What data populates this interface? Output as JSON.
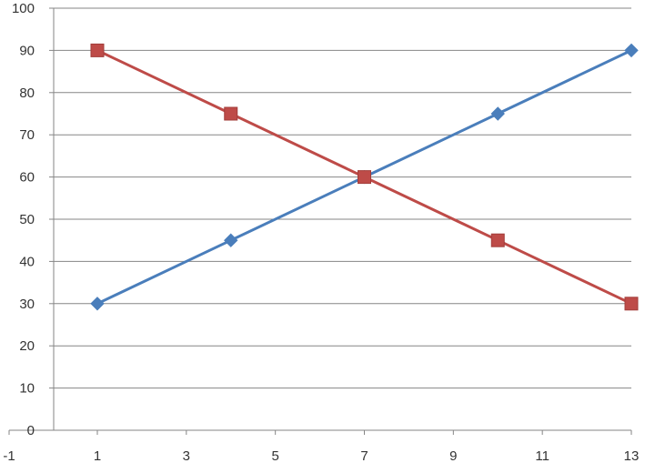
{
  "chart_data": {
    "type": "scatter",
    "title": "",
    "xlabel": "",
    "ylabel": "",
    "xlim": [
      -1,
      13
    ],
    "ylim": [
      0,
      100
    ],
    "x_ticks": [
      -1,
      1,
      3,
      5,
      7,
      9,
      11,
      13
    ],
    "y_ticks": [
      0,
      10,
      20,
      30,
      40,
      50,
      60,
      70,
      80,
      90,
      100
    ],
    "grid": "horizontal",
    "legend": "none",
    "series": [
      {
        "marker": "diamond",
        "color": "#4a7ebb",
        "points": [
          {
            "x": 1,
            "y": 30
          },
          {
            "x": 4,
            "y": 45
          },
          {
            "x": 7,
            "y": 60
          },
          {
            "x": 10,
            "y": 75
          },
          {
            "x": 13,
            "y": 90
          }
        ]
      },
      {
        "marker": "square",
        "color": "#be4b48",
        "points": [
          {
            "x": 1,
            "y": 90
          },
          {
            "x": 4,
            "y": 75
          },
          {
            "x": 7,
            "y": 60
          },
          {
            "x": 10,
            "y": 45
          },
          {
            "x": 13,
            "y": 30
          }
        ]
      }
    ]
  }
}
